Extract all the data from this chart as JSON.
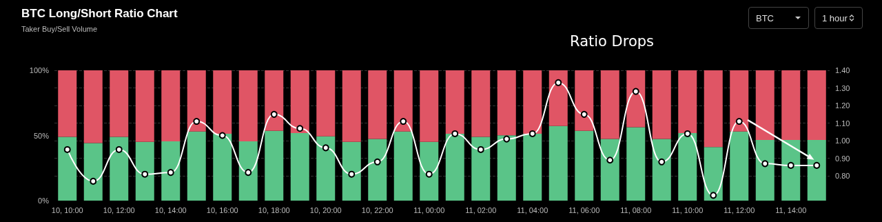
{
  "chart_data": {
    "type": "bar",
    "title": "BTC Long/Short Ratio Chart",
    "subtitle": "Taker Buy/Sell Volume",
    "annotations": [
      "Ratio Drops",
      "BTC",
      "1 hour"
    ],
    "categories": [
      "10, 10:00",
      null,
      "10, 12:00",
      null,
      "10, 14:00",
      null,
      "10, 16:00",
      null,
      "10, 18:00",
      null,
      "10, 20:00",
      null,
      "10, 22:00",
      null,
      "11, 00:00",
      null,
      "11, 02:00",
      null,
      "11, 04:00",
      null,
      "11, 06:00",
      null,
      "11, 08:00",
      null,
      "11, 10:00",
      null,
      "11, 12:00",
      null,
      "11, 14:00",
      null
    ],
    "stacked": true,
    "series": [
      {
        "color": "#5ac488",
        "values": [
          49.0,
          44.2,
          49.0,
          45.1,
          45.5,
          53.1,
          51.3,
          45.5,
          53.6,
          51.9,
          49.4,
          45.1,
          47.3,
          53.1,
          45.1,
          51.3,
          49.0,
          50.1,
          51.3,
          57.3,
          53.6,
          47.3,
          56.3,
          47.3,
          51.9,
          41.2,
          53.1,
          46.5,
          46.5,
          46.5
        ]
      },
      {
        "color": "#e05565",
        "values": [
          51.0,
          55.8,
          51.0,
          54.9,
          54.5,
          46.9,
          48.7,
          54.5,
          46.4,
          48.1,
          50.6,
          54.9,
          52.7,
          46.9,
          54.9,
          48.7,
          51.0,
          49.9,
          48.7,
          42.7,
          46.4,
          52.7,
          43.7,
          52.7,
          48.1,
          58.8,
          46.9,
          53.5,
          53.5,
          53.5
        ]
      },
      {
        "type": "line",
        "axis": "y2",
        "color": "#ffffff",
        "values": [
          0.95,
          0.77,
          0.95,
          0.81,
          0.82,
          1.11,
          1.03,
          0.82,
          1.15,
          1.07,
          0.96,
          0.81,
          0.88,
          1.11,
          0.81,
          1.04,
          0.95,
          1.01,
          1.04,
          1.33,
          1.15,
          0.89,
          1.28,
          0.88,
          1.04,
          0.69,
          1.11,
          0.87,
          0.86,
          0.86
        ]
      }
    ],
    "ylim": [
      0,
      100
    ],
    "yticks": [
      {
        "value": 0,
        "label": "0%"
      },
      {
        "value": 50,
        "label": "50%"
      },
      {
        "value": 100,
        "label": "100%"
      }
    ],
    "y2lim": [
      0.66,
      1.4
    ],
    "y2ticks": [
      {
        "value": 0.8,
        "label": "0.80"
      },
      {
        "value": 0.9,
        "label": "0.90"
      },
      {
        "value": 1.0,
        "label": "1.00"
      },
      {
        "value": 1.1,
        "label": "1.10"
      },
      {
        "value": 1.2,
        "label": "1.20"
      },
      {
        "value": 1.3,
        "label": "1.30"
      },
      {
        "value": 1.4,
        "label": "1.40"
      }
    ],
    "grid": "y2",
    "marker": "circle"
  }
}
